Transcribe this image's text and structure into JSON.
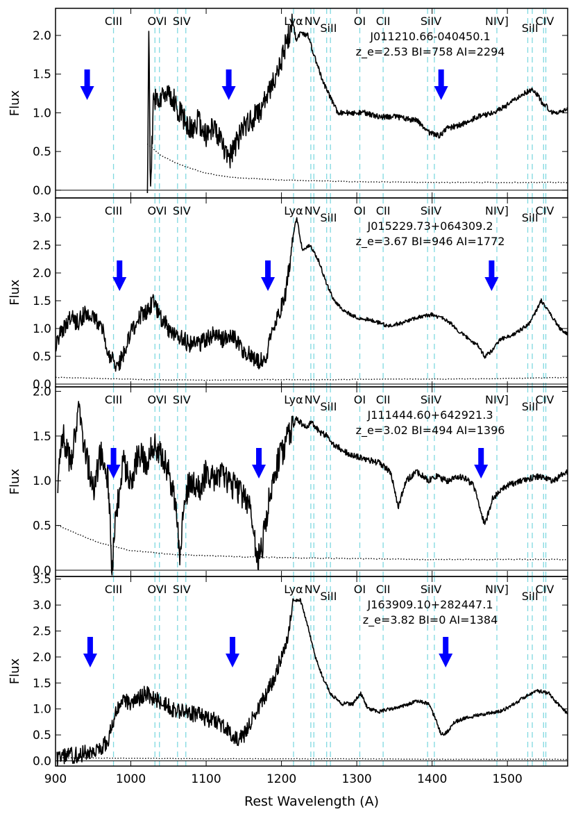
{
  "figure": {
    "xlabel": "Rest Wavelength (A)",
    "xlim": [
      900,
      1580
    ],
    "xticks": [
      900,
      1000,
      1100,
      1200,
      1300,
      1400,
      1500
    ],
    "colors": {
      "spectrum": "#000000",
      "error": "#000000",
      "line_marker": "#7fd8e0",
      "arrow": "#0000ff"
    }
  },
  "line_markers": [
    {
      "label": "CIII",
      "wavelengths": [
        977
      ],
      "label_row": "top"
    },
    {
      "label": "OVI",
      "wavelengths": [
        1032,
        1038
      ],
      "label_row": "top"
    },
    {
      "label": "SIV",
      "wavelengths": [
        1062,
        1073
      ],
      "label_row": "top"
    },
    {
      "label": "Lyα",
      "wavelengths": [
        1216
      ],
      "label_row": "top"
    },
    {
      "label": "NV",
      "wavelengths": [
        1239,
        1243
      ],
      "label_row": "top"
    },
    {
      "label": "SiII",
      "wavelengths": [
        1260,
        1265
      ],
      "label_row": "low"
    },
    {
      "label": "OI",
      "wavelengths": [
        1304
      ],
      "label_row": "top"
    },
    {
      "label": "CII",
      "wavelengths": [
        1335
      ],
      "label_row": "top"
    },
    {
      "label": "SiIV",
      "wavelengths": [
        1394,
        1403
      ],
      "label_row": "top"
    },
    {
      "label": "NIV]",
      "wavelengths": [
        1486
      ],
      "label_row": "top"
    },
    {
      "label": "SiII",
      "wavelengths": [
        1527,
        1533
      ],
      "label_row": "low"
    },
    {
      "label": "CIV",
      "wavelengths": [
        1548,
        1551
      ],
      "label_row": "top"
    }
  ],
  "chart_data": [
    {
      "type": "line",
      "name": "J011210.66-040450.1",
      "info": "z_e=2.53  BI=758  AI=2294",
      "ylabel": "Flux",
      "ylim": [
        -0.1,
        2.35
      ],
      "yticks": [
        0.0,
        0.5,
        1.0,
        1.5,
        2.0
      ],
      "x_start": 1022,
      "spectrum": [
        [
          1022,
          -0.1
        ],
        [
          1024,
          2.3
        ],
        [
          1026,
          -0.1
        ],
        [
          1030,
          1.2
        ],
        [
          1040,
          1.15
        ],
        [
          1050,
          1.3
        ],
        [
          1060,
          1.1
        ],
        [
          1070,
          0.9
        ],
        [
          1080,
          0.8
        ],
        [
          1090,
          0.9
        ],
        [
          1100,
          0.7
        ],
        [
          1110,
          0.8
        ],
        [
          1120,
          0.6
        ],
        [
          1130,
          0.4
        ],
        [
          1140,
          0.6
        ],
        [
          1150,
          0.8
        ],
        [
          1160,
          0.9
        ],
        [
          1170,
          1.0
        ],
        [
          1180,
          1.2
        ],
        [
          1190,
          1.4
        ],
        [
          1200,
          1.7
        ],
        [
          1210,
          2.0
        ],
        [
          1215,
          2.2
        ],
        [
          1220,
          1.9
        ],
        [
          1225,
          2.05
        ],
        [
          1235,
          2.0
        ],
        [
          1245,
          1.7
        ],
        [
          1255,
          1.4
        ],
        [
          1265,
          1.2
        ],
        [
          1275,
          1.0
        ],
        [
          1290,
          1.0
        ],
        [
          1310,
          1.0
        ],
        [
          1330,
          0.95
        ],
        [
          1350,
          0.95
        ],
        [
          1380,
          0.9
        ],
        [
          1395,
          0.75
        ],
        [
          1410,
          0.7
        ],
        [
          1420,
          0.8
        ],
        [
          1440,
          0.85
        ],
        [
          1460,
          0.95
        ],
        [
          1480,
          1.0
        ],
        [
          1500,
          1.1
        ],
        [
          1520,
          1.25
        ],
        [
          1535,
          1.3
        ],
        [
          1545,
          1.15
        ],
        [
          1560,
          1.0
        ],
        [
          1580,
          1.05
        ]
      ],
      "error": [
        [
          1022,
          0.6
        ],
        [
          1040,
          0.45
        ],
        [
          1060,
          0.35
        ],
        [
          1080,
          0.28
        ],
        [
          1100,
          0.22
        ],
        [
          1130,
          0.17
        ],
        [
          1160,
          0.15
        ],
        [
          1200,
          0.13
        ],
        [
          1250,
          0.12
        ],
        [
          1300,
          0.11
        ],
        [
          1400,
          0.1
        ],
        [
          1500,
          0.1
        ],
        [
          1580,
          0.1
        ]
      ],
      "arrows": [
        942,
        1130,
        1412
      ]
    },
    {
      "type": "line",
      "name": "J015229.73+064309.2",
      "info": "z_e=3.67  BI=946  AI=1772",
      "ylabel": "Flux",
      "ylim": [
        -0.05,
        3.35
      ],
      "yticks": [
        0.0,
        0.5,
        1.0,
        1.5,
        2.0,
        2.5,
        3.0
      ],
      "x_start": 900,
      "spectrum": [
        [
          900,
          0.7
        ],
        [
          910,
          1.0
        ],
        [
          920,
          1.2
        ],
        [
          930,
          1.1
        ],
        [
          940,
          1.3
        ],
        [
          950,
          1.2
        ],
        [
          960,
          1.1
        ],
        [
          970,
          0.6
        ],
        [
          980,
          0.3
        ],
        [
          990,
          0.5
        ],
        [
          1000,
          0.9
        ],
        [
          1010,
          1.2
        ],
        [
          1020,
          1.3
        ],
        [
          1030,
          1.5
        ],
        [
          1040,
          1.2
        ],
        [
          1050,
          1.0
        ],
        [
          1060,
          0.9
        ],
        [
          1070,
          0.8
        ],
        [
          1080,
          0.7
        ],
        [
          1090,
          0.7
        ],
        [
          1100,
          0.8
        ],
        [
          1110,
          0.9
        ],
        [
          1120,
          0.8
        ],
        [
          1130,
          0.85
        ],
        [
          1140,
          0.8
        ],
        [
          1150,
          0.6
        ],
        [
          1160,
          0.5
        ],
        [
          1170,
          0.4
        ],
        [
          1180,
          0.5
        ],
        [
          1185,
          0.8
        ],
        [
          1195,
          1.2
        ],
        [
          1205,
          1.6
        ],
        [
          1215,
          2.6
        ],
        [
          1220,
          3.0
        ],
        [
          1228,
          2.4
        ],
        [
          1238,
          2.5
        ],
        [
          1250,
          2.2
        ],
        [
          1260,
          1.8
        ],
        [
          1270,
          1.5
        ],
        [
          1285,
          1.3
        ],
        [
          1300,
          1.2
        ],
        [
          1320,
          1.15
        ],
        [
          1340,
          1.05
        ],
        [
          1360,
          1.1
        ],
        [
          1380,
          1.2
        ],
        [
          1400,
          1.25
        ],
        [
          1420,
          1.15
        ],
        [
          1440,
          0.9
        ],
        [
          1460,
          0.7
        ],
        [
          1470,
          0.5
        ],
        [
          1480,
          0.6
        ],
        [
          1490,
          0.8
        ],
        [
          1510,
          0.9
        ],
        [
          1530,
          1.1
        ],
        [
          1545,
          1.5
        ],
        [
          1555,
          1.3
        ],
        [
          1570,
          1.0
        ],
        [
          1580,
          0.9
        ]
      ],
      "error": [
        [
          900,
          0.12
        ],
        [
          960,
          0.1
        ],
        [
          1020,
          0.08
        ],
        [
          1100,
          0.07
        ],
        [
          1180,
          0.08
        ],
        [
          1260,
          0.08
        ],
        [
          1340,
          0.09
        ],
        [
          1420,
          0.09
        ],
        [
          1500,
          0.1
        ],
        [
          1580,
          0.12
        ]
      ],
      "arrows": [
        985,
        1182,
        1479
      ]
    },
    {
      "type": "line",
      "name": "J111444.60+642921.3",
      "info": "z_e=3.02  BI=494  AI=1396",
      "ylabel": "Flux",
      "ylim": [
        -0.07,
        2.05
      ],
      "yticks": [
        0.0,
        0.5,
        1.0,
        1.5,
        2.0
      ],
      "x_start": 903,
      "spectrum": [
        [
          903,
          1.0
        ],
        [
          910,
          1.5
        ],
        [
          920,
          1.2
        ],
        [
          930,
          1.8
        ],
        [
          940,
          1.3
        ],
        [
          950,
          0.9
        ],
        [
          960,
          1.3
        ],
        [
          970,
          1.0
        ],
        [
          975,
          0.0
        ],
        [
          980,
          0.6
        ],
        [
          990,
          1.2
        ],
        [
          1000,
          1.0
        ],
        [
          1010,
          1.3
        ],
        [
          1020,
          1.2
        ],
        [
          1030,
          1.4
        ],
        [
          1040,
          1.3
        ],
        [
          1050,
          1.1
        ],
        [
          1060,
          0.7
        ],
        [
          1066,
          0.1
        ],
        [
          1070,
          0.8
        ],
        [
          1080,
          1.0
        ],
        [
          1090,
          0.9
        ],
        [
          1100,
          1.1
        ],
        [
          1110,
          1.0
        ],
        [
          1120,
          1.1
        ],
        [
          1130,
          1.0
        ],
        [
          1140,
          0.9
        ],
        [
          1150,
          0.8
        ],
        [
          1160,
          0.7
        ],
        [
          1168,
          0.1
        ],
        [
          1175,
          0.3
        ],
        [
          1180,
          0.6
        ],
        [
          1190,
          1.1
        ],
        [
          1200,
          1.3
        ],
        [
          1210,
          1.5
        ],
        [
          1220,
          1.7
        ],
        [
          1230,
          1.6
        ],
        [
          1240,
          1.65
        ],
        [
          1250,
          1.55
        ],
        [
          1260,
          1.5
        ],
        [
          1270,
          1.4
        ],
        [
          1290,
          1.3
        ],
        [
          1310,
          1.25
        ],
        [
          1330,
          1.2
        ],
        [
          1345,
          1.1
        ],
        [
          1355,
          0.7
        ],
        [
          1365,
          1.0
        ],
        [
          1380,
          1.1
        ],
        [
          1395,
          1.0
        ],
        [
          1405,
          1.05
        ],
        [
          1420,
          1.0
        ],
        [
          1440,
          1.05
        ],
        [
          1455,
          0.95
        ],
        [
          1465,
          0.65
        ],
        [
          1470,
          0.5
        ],
        [
          1480,
          0.8
        ],
        [
          1500,
          0.95
        ],
        [
          1520,
          1.0
        ],
        [
          1540,
          1.05
        ],
        [
          1560,
          1.0
        ],
        [
          1580,
          1.1
        ]
      ],
      "error": [
        [
          903,
          0.5
        ],
        [
          930,
          0.4
        ],
        [
          960,
          0.3
        ],
        [
          1000,
          0.22
        ],
        [
          1050,
          0.18
        ],
        [
          1100,
          0.16
        ],
        [
          1150,
          0.15
        ],
        [
          1200,
          0.14
        ],
        [
          1300,
          0.13
        ],
        [
          1400,
          0.12
        ],
        [
          1500,
          0.12
        ],
        [
          1580,
          0.12
        ]
      ],
      "arrows": [
        977,
        1170,
        1465
      ]
    },
    {
      "type": "line",
      "name": "J163909.10+282447.1",
      "info": "z_e=3.82  BI=0  AI=1384",
      "ylabel": "Flux",
      "ylim": [
        -0.1,
        3.55
      ],
      "yticks": [
        0.0,
        0.5,
        1.0,
        1.5,
        2.0,
        2.5,
        3.0,
        3.5
      ],
      "x_start": 902,
      "spectrum": [
        [
          902,
          0.05
        ],
        [
          920,
          0.1
        ],
        [
          940,
          0.15
        ],
        [
          950,
          0.2
        ],
        [
          960,
          0.25
        ],
        [
          970,
          0.4
        ],
        [
          980,
          0.9
        ],
        [
          990,
          1.2
        ],
        [
          1000,
          1.1
        ],
        [
          1010,
          1.2
        ],
        [
          1020,
          1.3
        ],
        [
          1030,
          1.2
        ],
        [
          1040,
          1.15
        ],
        [
          1050,
          1.05
        ],
        [
          1060,
          0.95
        ],
        [
          1070,
          1.0
        ],
        [
          1080,
          0.9
        ],
        [
          1090,
          0.9
        ],
        [
          1100,
          0.8
        ],
        [
          1110,
          0.8
        ],
        [
          1120,
          0.7
        ],
        [
          1130,
          0.6
        ],
        [
          1140,
          0.4
        ],
        [
          1150,
          0.5
        ],
        [
          1160,
          0.8
        ],
        [
          1170,
          1.0
        ],
        [
          1180,
          1.3
        ],
        [
          1190,
          1.6
        ],
        [
          1200,
          2.0
        ],
        [
          1210,
          2.5
        ],
        [
          1215,
          3.1
        ],
        [
          1225,
          3.1
        ],
        [
          1235,
          2.6
        ],
        [
          1245,
          2.0
        ],
        [
          1255,
          1.6
        ],
        [
          1265,
          1.3
        ],
        [
          1280,
          1.1
        ],
        [
          1295,
          1.1
        ],
        [
          1305,
          1.3
        ],
        [
          1315,
          1.0
        ],
        [
          1330,
          0.95
        ],
        [
          1345,
          1.0
        ],
        [
          1360,
          1.05
        ],
        [
          1380,
          1.15
        ],
        [
          1395,
          1.1
        ],
        [
          1405,
          0.8
        ],
        [
          1412,
          0.5
        ],
        [
          1420,
          0.55
        ],
        [
          1430,
          0.75
        ],
        [
          1450,
          0.85
        ],
        [
          1470,
          0.9
        ],
        [
          1490,
          0.95
        ],
        [
          1510,
          1.1
        ],
        [
          1525,
          1.25
        ],
        [
          1540,
          1.35
        ],
        [
          1555,
          1.3
        ],
        [
          1570,
          1.05
        ],
        [
          1580,
          0.9
        ]
      ],
      "error": [
        [
          902,
          0.06
        ],
        [
          1000,
          0.05
        ],
        [
          1100,
          0.04
        ],
        [
          1200,
          0.04
        ],
        [
          1300,
          0.04
        ],
        [
          1400,
          0.03
        ],
        [
          1500,
          0.03
        ],
        [
          1580,
          0.03
        ]
      ],
      "arrows": [
        946,
        1135,
        1418
      ]
    }
  ]
}
